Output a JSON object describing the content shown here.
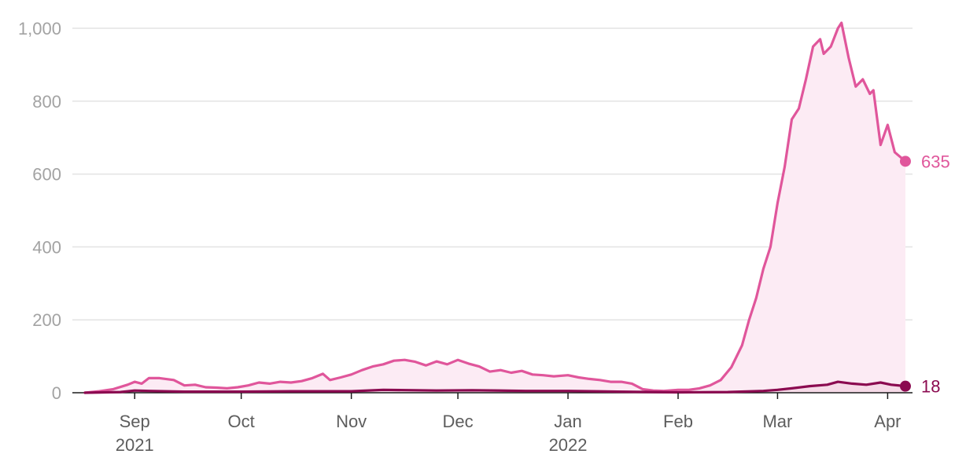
{
  "chart_data": {
    "type": "area",
    "x_axis": {
      "type": "time",
      "range": [
        "2021-08-18",
        "2022-04-08"
      ],
      "ticks": [
        {
          "date": "2021-09-01",
          "label": "Sep",
          "sublabel": "2021"
        },
        {
          "date": "2021-10-01",
          "label": "Oct",
          "sublabel": ""
        },
        {
          "date": "2021-11-01",
          "label": "Nov",
          "sublabel": ""
        },
        {
          "date": "2021-12-01",
          "label": "Dec",
          "sublabel": ""
        },
        {
          "date": "2022-01-01",
          "label": "Jan",
          "sublabel": "2022"
        },
        {
          "date": "2022-02-01",
          "label": "Feb",
          "sublabel": ""
        },
        {
          "date": "2022-03-01",
          "label": "Mar",
          "sublabel": ""
        },
        {
          "date": "2022-04-01",
          "label": "Apr",
          "sublabel": ""
        }
      ]
    },
    "y_axis": {
      "ylim": [
        0,
        1000
      ],
      "ticks": [
        0,
        200,
        400,
        600,
        800,
        1000
      ],
      "tick_labels": [
        "0",
        "200",
        "400",
        "600",
        "800",
        "1,000"
      ],
      "grid": true
    },
    "legend": "none",
    "series": [
      {
        "color": "#e0569b",
        "fill": "#fcebf4",
        "end_label": "635",
        "points": [
          [
            "2021-08-18",
            0
          ],
          [
            "2021-08-22",
            4
          ],
          [
            "2021-08-26",
            10
          ],
          [
            "2021-08-30",
            22
          ],
          [
            "2021-09-01",
            30
          ],
          [
            "2021-09-03",
            25
          ],
          [
            "2021-09-05",
            40
          ],
          [
            "2021-09-08",
            40
          ],
          [
            "2021-09-12",
            35
          ],
          [
            "2021-09-15",
            20
          ],
          [
            "2021-09-18",
            22
          ],
          [
            "2021-09-21",
            15
          ],
          [
            "2021-09-24",
            14
          ],
          [
            "2021-09-27",
            12
          ],
          [
            "2021-09-30",
            15
          ],
          [
            "2021-10-03",
            20
          ],
          [
            "2021-10-06",
            28
          ],
          [
            "2021-10-09",
            25
          ],
          [
            "2021-10-12",
            30
          ],
          [
            "2021-10-15",
            28
          ],
          [
            "2021-10-18",
            32
          ],
          [
            "2021-10-21",
            40
          ],
          [
            "2021-10-24",
            52
          ],
          [
            "2021-10-26",
            35
          ],
          [
            "2021-10-29",
            42
          ],
          [
            "2021-11-01",
            50
          ],
          [
            "2021-11-04",
            62
          ],
          [
            "2021-11-07",
            72
          ],
          [
            "2021-11-10",
            78
          ],
          [
            "2021-11-13",
            88
          ],
          [
            "2021-11-16",
            90
          ],
          [
            "2021-11-19",
            85
          ],
          [
            "2021-11-22",
            75
          ],
          [
            "2021-11-25",
            86
          ],
          [
            "2021-11-28",
            78
          ],
          [
            "2021-12-01",
            90
          ],
          [
            "2021-12-04",
            80
          ],
          [
            "2021-12-07",
            72
          ],
          [
            "2021-12-10",
            58
          ],
          [
            "2021-12-13",
            62
          ],
          [
            "2021-12-16",
            55
          ],
          [
            "2021-12-19",
            60
          ],
          [
            "2021-12-22",
            50
          ],
          [
            "2021-12-25",
            48
          ],
          [
            "2021-12-28",
            45
          ],
          [
            "2022-01-01",
            48
          ],
          [
            "2022-01-04",
            42
          ],
          [
            "2022-01-07",
            38
          ],
          [
            "2022-01-10",
            35
          ],
          [
            "2022-01-13",
            30
          ],
          [
            "2022-01-16",
            30
          ],
          [
            "2022-01-19",
            25
          ],
          [
            "2022-01-22",
            10
          ],
          [
            "2022-01-25",
            6
          ],
          [
            "2022-01-28",
            5
          ],
          [
            "2022-02-01",
            8
          ],
          [
            "2022-02-04",
            8
          ],
          [
            "2022-02-07",
            12
          ],
          [
            "2022-02-10",
            20
          ],
          [
            "2022-02-13",
            35
          ],
          [
            "2022-02-16",
            70
          ],
          [
            "2022-02-19",
            130
          ],
          [
            "2022-02-21",
            200
          ],
          [
            "2022-02-23",
            260
          ],
          [
            "2022-02-25",
            340
          ],
          [
            "2022-02-27",
            400
          ],
          [
            "2022-03-01",
            520
          ],
          [
            "2022-03-03",
            620
          ],
          [
            "2022-03-05",
            750
          ],
          [
            "2022-03-07",
            780
          ],
          [
            "2022-03-09",
            860
          ],
          [
            "2022-03-11",
            950
          ],
          [
            "2022-03-13",
            970
          ],
          [
            "2022-03-14",
            930
          ],
          [
            "2022-03-16",
            950
          ],
          [
            "2022-03-18",
            1000
          ],
          [
            "2022-03-19",
            1015
          ],
          [
            "2022-03-21",
            920
          ],
          [
            "2022-03-23",
            840
          ],
          [
            "2022-03-25",
            860
          ],
          [
            "2022-03-27",
            820
          ],
          [
            "2022-03-28",
            830
          ],
          [
            "2022-03-30",
            680
          ],
          [
            "2022-04-01",
            735
          ],
          [
            "2022-04-03",
            660
          ],
          [
            "2022-04-06",
            635
          ]
        ]
      },
      {
        "color": "#8b0a50",
        "fill": "#f6dbe8",
        "end_label": "18",
        "points": [
          [
            "2021-08-18",
            0
          ],
          [
            "2021-08-28",
            2
          ],
          [
            "2021-09-01",
            6
          ],
          [
            "2021-09-05",
            5
          ],
          [
            "2021-09-15",
            3
          ],
          [
            "2021-10-01",
            3
          ],
          [
            "2021-10-15",
            4
          ],
          [
            "2021-11-01",
            4
          ],
          [
            "2021-11-10",
            8
          ],
          [
            "2021-11-25",
            6
          ],
          [
            "2021-12-05",
            7
          ],
          [
            "2021-12-20",
            5
          ],
          [
            "2022-01-01",
            5
          ],
          [
            "2022-01-15",
            3
          ],
          [
            "2022-02-01",
            1
          ],
          [
            "2022-02-15",
            2
          ],
          [
            "2022-02-25",
            5
          ],
          [
            "2022-03-01",
            8
          ],
          [
            "2022-03-05",
            12
          ],
          [
            "2022-03-10",
            18
          ],
          [
            "2022-03-15",
            22
          ],
          [
            "2022-03-18",
            30
          ],
          [
            "2022-03-22",
            25
          ],
          [
            "2022-03-26",
            22
          ],
          [
            "2022-03-30",
            28
          ],
          [
            "2022-04-02",
            22
          ],
          [
            "2022-04-06",
            18
          ]
        ]
      }
    ]
  }
}
